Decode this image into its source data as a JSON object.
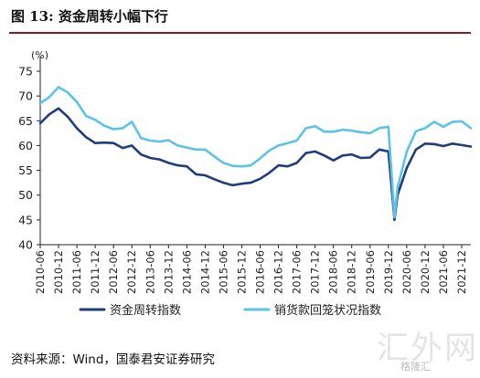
{
  "page": {
    "title": "图 13: 资金周转小幅下行",
    "source": "资料来源：Wind，国泰君安证券研究",
    "watermark": "汇外网",
    "brand": "格隆汇"
  },
  "colors": {
    "title_rule": "#8b1a1a",
    "series_1": "#1f3d7a",
    "series_2": "#5bc3e6"
  },
  "chart_data": {
    "type": "line",
    "unit_label": "(%)",
    "ylim": [
      40,
      75
    ],
    "yticks": [
      40,
      45,
      50,
      55,
      60,
      65,
      70,
      75
    ],
    "xtick_labels": [
      "2010-06",
      "2010-12",
      "2011-06",
      "2011-12",
      "2012-06",
      "2012-12",
      "2013-06",
      "2013-12",
      "2014-06",
      "2014-12",
      "2015-06",
      "2015-12",
      "2016-06",
      "2016-12",
      "2017-06",
      "2017-12",
      "2018-06",
      "2018-12",
      "2019-06",
      "2019-12",
      "2020-06",
      "2020-12",
      "2021-06",
      "2021-12"
    ],
    "x": [
      "2010-06",
      "2010-09",
      "2010-12",
      "2011-03",
      "2011-06",
      "2011-09",
      "2011-12",
      "2012-03",
      "2012-06",
      "2012-09",
      "2012-12",
      "2013-03",
      "2013-06",
      "2013-09",
      "2013-12",
      "2014-03",
      "2014-06",
      "2014-09",
      "2014-12",
      "2015-03",
      "2015-06",
      "2015-09",
      "2015-12",
      "2016-03",
      "2016-06",
      "2016-09",
      "2016-12",
      "2017-03",
      "2017-06",
      "2017-09",
      "2017-12",
      "2018-03",
      "2018-06",
      "2018-09",
      "2018-12",
      "2019-03",
      "2019-06",
      "2019-09",
      "2019-12",
      "2020-02",
      "2020-03",
      "2020-06",
      "2020-09",
      "2020-12",
      "2021-03",
      "2021-06",
      "2021-09",
      "2021-12",
      "2022-03"
    ],
    "series": [
      {
        "name": "资金周转指数",
        "values": [
          64.5,
          66.3,
          67.5,
          65.8,
          63.5,
          61.7,
          60.5,
          60.6,
          60.5,
          59.5,
          60.0,
          58.2,
          57.5,
          57.2,
          56.5,
          56.0,
          55.8,
          54.2,
          54.0,
          53.2,
          52.5,
          52.0,
          52.3,
          52.5,
          53.3,
          54.5,
          56.0,
          55.8,
          56.5,
          58.5,
          58.8,
          58.0,
          57.0,
          58.0,
          58.2,
          57.5,
          57.6,
          59.2,
          58.8,
          45.0,
          50.0,
          55.5,
          59.2,
          60.4,
          60.3,
          59.9,
          60.4,
          60.1,
          59.8
        ]
      },
      {
        "name": "销货款回笼状况指数",
        "values": [
          68.5,
          69.8,
          71.8,
          70.7,
          68.8,
          66.0,
          65.2,
          64.0,
          63.3,
          63.5,
          64.8,
          61.5,
          61.0,
          60.8,
          61.1,
          60.0,
          59.6,
          59.2,
          59.2,
          57.8,
          56.5,
          55.9,
          55.8,
          56.0,
          57.4,
          59.0,
          60.0,
          60.5,
          61.0,
          63.5,
          63.9,
          62.8,
          62.8,
          63.2,
          63.0,
          62.7,
          62.5,
          63.5,
          63.8,
          45.5,
          51.5,
          58.8,
          62.9,
          63.5,
          64.8,
          63.8,
          64.8,
          64.9,
          63.5
        ]
      }
    ],
    "grid": false,
    "legend_position": "bottom"
  }
}
